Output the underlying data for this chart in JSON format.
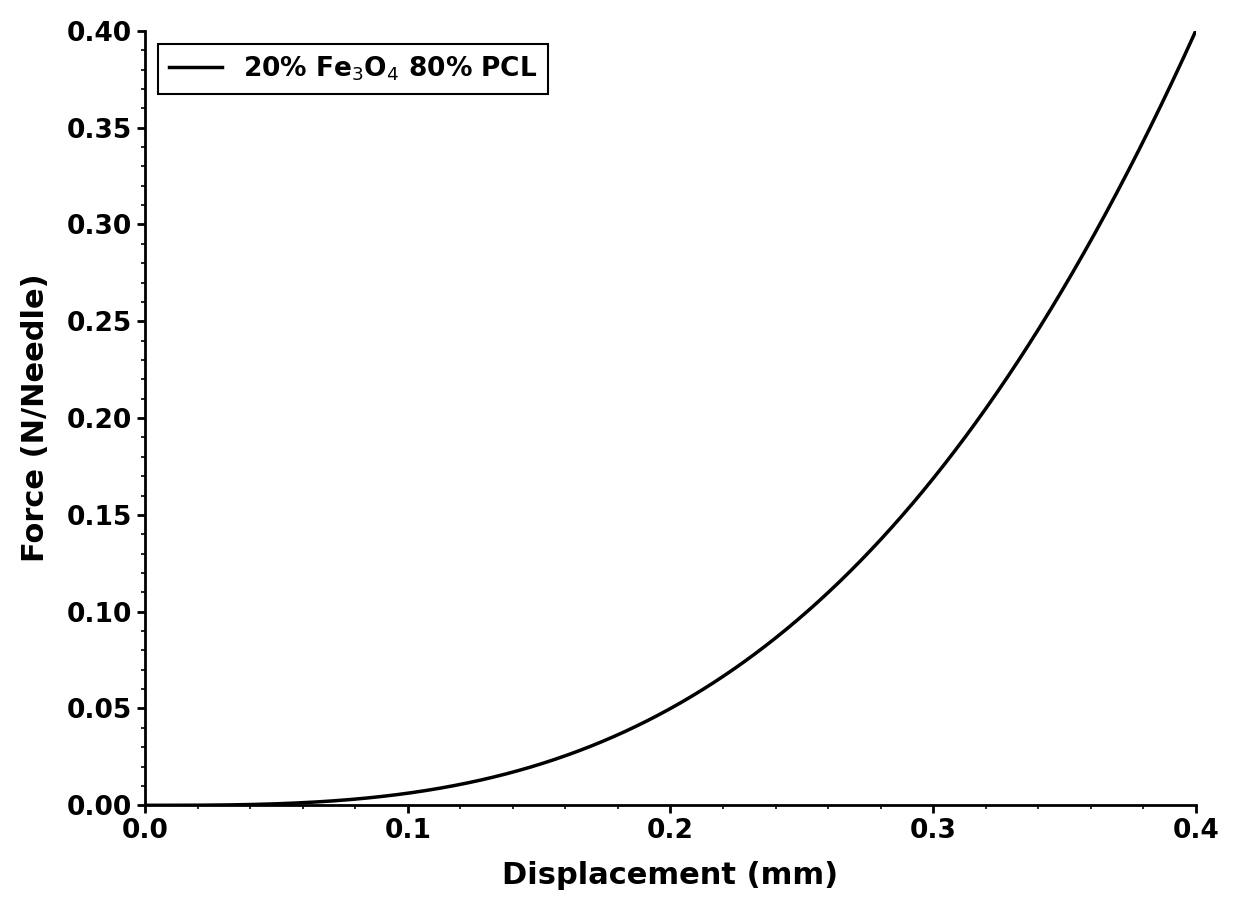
{
  "xlabel": "Displacement (mm)",
  "ylabel": "Force (N/Needle)",
  "legend_label": "20% Fe$_3$O$_4$ 80% PCL",
  "xlim": [
    0.0,
    0.4
  ],
  "ylim": [
    0.0,
    0.4
  ],
  "xticks": [
    0.0,
    0.1,
    0.2,
    0.3,
    0.4
  ],
  "yticks": [
    0.0,
    0.05,
    0.1,
    0.15,
    0.2,
    0.25,
    0.3,
    0.35,
    0.4
  ],
  "line_color": "#000000",
  "line_width": 2.5,
  "background_color": "#ffffff",
  "power": 3.0,
  "scale": 6.25
}
